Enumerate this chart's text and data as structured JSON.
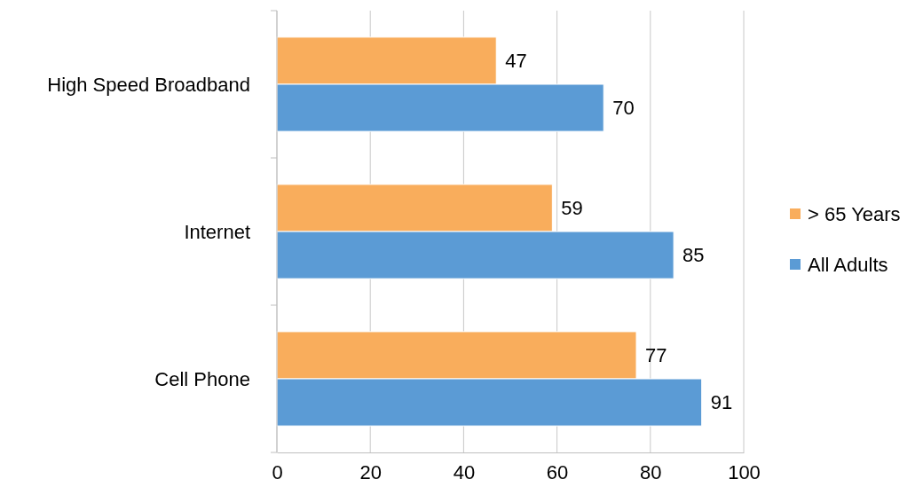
{
  "chart_data": {
    "type": "bar",
    "orientation": "horizontal",
    "categories": [
      "High Speed Broadband",
      "Internet",
      "Cell Phone"
    ],
    "series": [
      {
        "name": "> 65 Years",
        "color": "#f9ad5c",
        "values": [
          47,
          59,
          77
        ]
      },
      {
        "name": "All Adults",
        "color": "#5b9bd5",
        "values": [
          70,
          85,
          91
        ]
      }
    ],
    "xlim": [
      0,
      100
    ],
    "xticks": [
      0,
      20,
      40,
      60,
      80,
      100
    ],
    "grid": "x",
    "legend": "right",
    "data_labels": true
  }
}
